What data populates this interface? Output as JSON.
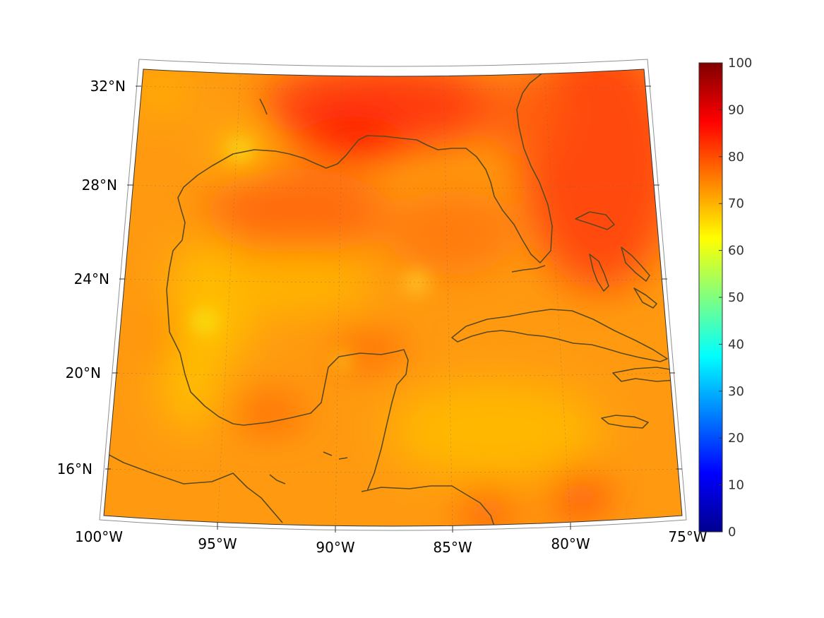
{
  "map": {
    "lon_labels": [
      "100°W",
      "95°W",
      "90°W",
      "85°W",
      "80°W",
      "75°W"
    ],
    "lat_labels": [
      "32°N",
      "28°N",
      "24°N",
      "20°N",
      "16°N"
    ]
  },
  "colorbar": {
    "ticks": [
      "100",
      "90",
      "80",
      "70",
      "60",
      "50",
      "40",
      "30",
      "20",
      "10",
      "0"
    ],
    "range": [
      0,
      100
    ],
    "colormap": "jet"
  },
  "colors": {
    "field_base": "#ff9a10",
    "field_warm": "#ff4a10",
    "field_hot": "#ff1a00",
    "field_cool": "#ffc800",
    "field_yellow": "#f2ff20",
    "coastline": "#5a4a1e"
  }
}
